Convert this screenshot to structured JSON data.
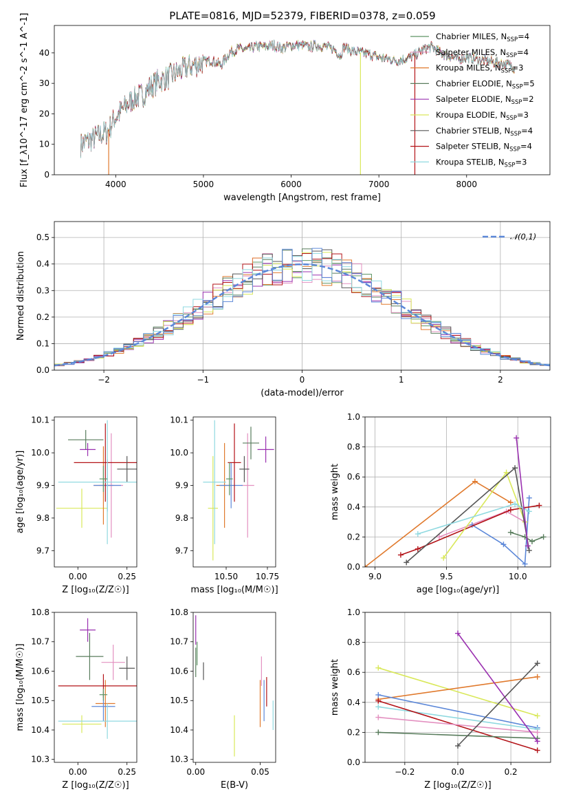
{
  "figure": {
    "title": "PLATE=0816, MJD=52379, FIBERID=0378, z=0.059"
  },
  "colors": {
    "chabrier_miles": "#5d9464",
    "salpeter_miles": "#e390c0",
    "kroupa_miles": "#e0792c",
    "chabrier_elodie": "#587c5c",
    "salpeter_elodie": "#9a30b0",
    "kroupa_elodie": "#d9e85a",
    "chabrier_stelib": "#555555",
    "salpeter_stelib": "#b31217",
    "kroupa_stelib": "#8fd9e0",
    "blue": "#5b87d8",
    "normal": "#5b87d8"
  },
  "chart_data": [
    {
      "id": "spectrum",
      "type": "line",
      "xlabel": "wavelength [Angstrom, rest frame]",
      "ylabel": "Flux [f_λ10^-17 erg cm^-2 s^-1 A^-1]",
      "xlim": [
        3300,
        8950
      ],
      "ylim": [
        0,
        49
      ],
      "xticks": [
        4000,
        5000,
        6000,
        7000,
        8000
      ],
      "yticks": [
        0,
        10,
        20,
        30,
        40
      ],
      "legend_loc": "upper right",
      "legend": [
        {
          "label": "Chabrier MILES, N",
          "sub": "SSP",
          "suffix": "=4",
          "color_key": "chabrier_miles"
        },
        {
          "label": "Salpeter MILES, N",
          "sub": "SSP",
          "suffix": "=4",
          "color_key": "salpeter_miles"
        },
        {
          "label": "Kroupa MILES, N",
          "sub": "SSP",
          "suffix": "=3",
          "color_key": "kroupa_miles"
        },
        {
          "label": "Chabrier ELODIE, N",
          "sub": "SSP",
          "suffix": "=5",
          "color_key": "chabrier_elodie"
        },
        {
          "label": "Salpeter ELODIE, N",
          "sub": "SSP",
          "suffix": "=2",
          "color_key": "salpeter_elodie"
        },
        {
          "label": "Kroupa ELODIE, N",
          "sub": "SSP",
          "suffix": "=3",
          "color_key": "kroupa_elodie"
        },
        {
          "label": "Chabrier STELIB, N",
          "sub": "SSP",
          "suffix": "=4",
          "color_key": "chabrier_stelib"
        },
        {
          "label": "Salpeter STELIB, N",
          "sub": "SSP",
          "suffix": "=4",
          "color_key": "salpeter_stelib"
        },
        {
          "label": "Kroupa STELIB, N",
          "sub": "SSP",
          "suffix": "=3",
          "color_key": "kroupa_stelib"
        }
      ],
      "continuum": [
        [
          3600,
          10
        ],
        [
          3750,
          12
        ],
        [
          3900,
          14
        ],
        [
          4000,
          19
        ],
        [
          4100,
          22
        ],
        [
          4200,
          25
        ],
        [
          4300,
          26
        ],
        [
          4400,
          29
        ],
        [
          4500,
          31
        ],
        [
          4600,
          32
        ],
        [
          4700,
          33.5
        ],
        [
          4800,
          35
        ],
        [
          4900,
          36
        ],
        [
          5000,
          37
        ],
        [
          5100,
          37.5
        ],
        [
          5200,
          36
        ],
        [
          5300,
          40
        ],
        [
          5400,
          41.5
        ],
        [
          5500,
          41
        ],
        [
          5600,
          42
        ],
        [
          5700,
          42
        ],
        [
          5800,
          42.5
        ],
        [
          5900,
          41.5
        ],
        [
          6000,
          42.5
        ],
        [
          6100,
          42.5
        ],
        [
          6200,
          42
        ],
        [
          6300,
          42.5
        ],
        [
          6400,
          42
        ],
        [
          6500,
          41
        ],
        [
          6560,
          39
        ],
        [
          6600,
          42
        ],
        [
          6700,
          40.5
        ],
        [
          6800,
          40
        ],
        [
          6900,
          39.5
        ],
        [
          7000,
          38.5
        ],
        [
          7100,
          38
        ],
        [
          7200,
          37.5
        ],
        [
          7300,
          38
        ],
        [
          7400,
          39
        ],
        [
          7500,
          41
        ],
        [
          7600,
          42
        ],
        [
          7700,
          40
        ],
        [
          7800,
          39
        ],
        [
          7900,
          38
        ],
        [
          8000,
          38.5
        ],
        [
          8100,
          38
        ],
        [
          8200,
          37.5
        ],
        [
          8300,
          37
        ],
        [
          8400,
          36.5
        ],
        [
          8500,
          36
        ],
        [
          8550,
          35
        ]
      ],
      "spikes": [
        {
          "x": 3920,
          "y": 0,
          "color_key": "kroupa_miles"
        },
        {
          "x": 6790,
          "y": 0,
          "color_key": "kroupa_elodie"
        },
        {
          "x": 7410,
          "y": 0,
          "color_key": "salpeter_stelib"
        }
      ]
    },
    {
      "id": "residuals",
      "type": "bar",
      "xlabel": "(data-model)/error",
      "ylabel": "Normed distribution",
      "xlim": [
        -2.5,
        2.5
      ],
      "ylim": [
        0,
        0.56
      ],
      "xticks": [
        -2,
        -1,
        0,
        1,
        2
      ],
      "yticks": [
        0.0,
        0.1,
        0.2,
        0.3,
        0.4,
        0.5
      ],
      "legend_loc": "upper right",
      "legend_label": "𝒩(0,1)",
      "bin_width": 0.1,
      "normal": {
        "mean": 0,
        "sigma": 1
      }
    },
    {
      "id": "age_vs_Z",
      "type": "scatter",
      "xlabel": "Z [log₁₀(Z/Z☉)]",
      "ylabel": "age  [log₁₀(age/yr)]",
      "xlim": [
        -0.12,
        0.3
      ],
      "ylim": [
        9.65,
        10.11
      ],
      "xticks": [
        0.0,
        0.25
      ],
      "yticks": [
        9.7,
        9.8,
        9.9,
        10.0,
        10.1
      ],
      "xtick_labels": [
        "0.00",
        "0.25"
      ],
      "points": [
        {
          "x": 0.02,
          "y": 9.83,
          "xerr": 0.13,
          "yerr": 0.06,
          "color_key": "kroupa_elodie"
        },
        {
          "x": 0.13,
          "y": 9.9,
          "xerr": 0.05,
          "yerr": 0.12,
          "color_key": "kroupa_miles"
        },
        {
          "x": 0.17,
          "y": 9.9,
          "xerr": 0.06,
          "yerr": 0.16,
          "color_key": "salpeter_miles"
        },
        {
          "x": 0.15,
          "y": 9.9,
          "xerr": 0.07,
          "yerr": 0.08,
          "color_key": "blue"
        },
        {
          "x": 0.14,
          "y": 9.97,
          "xerr": 0.16,
          "yerr": 0.12,
          "color_key": "salpeter_stelib"
        },
        {
          "x": 0.04,
          "y": 10.04,
          "xerr": 0.09,
          "yerr": 0.03,
          "color_key": "chabrier_elodie"
        },
        {
          "x": 0.05,
          "y": 10.01,
          "xerr": 0.04,
          "yerr": 0.02,
          "color_key": "salpeter_elodie"
        },
        {
          "x": 0.25,
          "y": 9.95,
          "xerr": 0.05,
          "yerr": 0.04,
          "color_key": "chabrier_stelib"
        },
        {
          "x": 0.15,
          "y": 9.91,
          "xerr": 0.25,
          "yerr": 0.19,
          "color_key": "kroupa_stelib"
        },
        {
          "x": 0.13,
          "y": 9.92,
          "xerr": 0.02,
          "yerr": 0.04,
          "color_key": "chabrier_miles"
        }
      ]
    },
    {
      "id": "age_vs_mass",
      "type": "scatter",
      "xlabel": "mass [log₁₀(M/M☉)]",
      "ylabel": "",
      "xlim": [
        10.3,
        10.8
      ],
      "ylim": [
        9.65,
        10.11
      ],
      "xticks": [
        10.5,
        10.75
      ],
      "yticks": [
        9.7,
        9.8,
        9.9,
        10.0,
        10.1
      ],
      "xtick_labels": [
        "10.50",
        "10.75"
      ],
      "points": [
        {
          "x": 10.42,
          "y": 9.83,
          "xerr": 0.03,
          "yerr": 0.16,
          "color_key": "kroupa_elodie"
        },
        {
          "x": 10.49,
          "y": 9.9,
          "xerr": 0.05,
          "yerr": 0.13,
          "color_key": "kroupa_miles"
        },
        {
          "x": 10.63,
          "y": 9.9,
          "xerr": 0.04,
          "yerr": 0.16,
          "color_key": "salpeter_miles"
        },
        {
          "x": 10.53,
          "y": 9.9,
          "xerr": 0.07,
          "yerr": 0.07,
          "color_key": "blue"
        },
        {
          "x": 10.55,
          "y": 9.97,
          "xerr": 0.04,
          "yerr": 0.12,
          "color_key": "salpeter_stelib"
        },
        {
          "x": 10.65,
          "y": 10.03,
          "xerr": 0.05,
          "yerr": 0.05,
          "color_key": "chabrier_elodie"
        },
        {
          "x": 10.74,
          "y": 10.01,
          "xerr": 0.05,
          "yerr": 0.04,
          "color_key": "salpeter_elodie"
        },
        {
          "x": 10.61,
          "y": 9.95,
          "xerr": 0.03,
          "yerr": 0.04,
          "color_key": "chabrier_stelib"
        },
        {
          "x": 10.43,
          "y": 9.91,
          "xerr": 0.07,
          "yerr": 0.19,
          "color_key": "kroupa_stelib"
        },
        {
          "x": 10.52,
          "y": 9.92,
          "xerr": 0.02,
          "yerr": 0.05,
          "color_key": "chabrier_miles"
        }
      ]
    },
    {
      "id": "weight_vs_age",
      "type": "line",
      "xlabel": "age  [log₁₀(age/yr)]",
      "ylabel": "mass weight",
      "xlim": [
        8.93,
        10.23
      ],
      "ylim": [
        0,
        1
      ],
      "xticks": [
        9.0,
        9.5,
        10.0
      ],
      "yticks": [
        0.0,
        0.2,
        0.4,
        0.6,
        0.8,
        1.0
      ],
      "series": [
        {
          "color_key": "kroupa_miles",
          "x": [
            8.93,
            9.7,
            9.95
          ],
          "y": [
            0.0,
            0.57,
            0.43
          ]
        },
        {
          "color_key": "salpeter_miles",
          "x": [
            9.45,
            9.92,
            10.05
          ],
          "y": [
            0.2,
            0.37,
            0.3
          ]
        },
        {
          "color_key": "blue",
          "x": [
            9.68,
            9.9,
            10.05,
            10.08
          ],
          "y": [
            0.28,
            0.15,
            0.02,
            0.46
          ]
        },
        {
          "color_key": "salpeter_stelib",
          "x": [
            9.18,
            9.3,
            9.95,
            10.15
          ],
          "y": [
            0.08,
            0.12,
            0.38,
            0.41
          ]
        },
        {
          "color_key": "kroupa_elodie",
          "x": [
            9.48,
            9.92,
            10.05
          ],
          "y": [
            0.06,
            0.63,
            0.3
          ]
        },
        {
          "color_key": "chabrier_elodie",
          "x": [
            9.95,
            10.05,
            10.1,
            10.18
          ],
          "y": [
            0.23,
            0.2,
            0.17,
            0.2
          ]
        },
        {
          "color_key": "chabrier_stelib",
          "x": [
            9.22,
            9.98,
            10.08
          ],
          "y": [
            0.03,
            0.66,
            0.11
          ]
        },
        {
          "color_key": "kroupa_stelib",
          "x": [
            9.3,
            9.98,
            10.08
          ],
          "y": [
            0.22,
            0.42,
            0.37
          ]
        },
        {
          "color_key": "salpeter_elodie",
          "x": [
            9.99,
            10.07
          ],
          "y": [
            0.86,
            0.14
          ]
        }
      ]
    },
    {
      "id": "mass_vs_Z",
      "type": "scatter",
      "xlabel": "Z [log₁₀(Z/Z☉)]",
      "ylabel": "mass [log₁₀(M/M☉)]",
      "xlim": [
        -0.12,
        0.3
      ],
      "ylim": [
        10.29,
        10.8
      ],
      "xticks": [
        0.0,
        0.25
      ],
      "yticks": [
        10.3,
        10.4,
        10.5,
        10.6,
        10.7,
        10.8
      ],
      "xtick_labels": [
        "0.00",
        "0.25"
      ],
      "points": [
        {
          "x": 0.02,
          "y": 10.42,
          "xerr": 0.1,
          "yerr": 0.03,
          "color_key": "kroupa_elodie"
        },
        {
          "x": 0.14,
          "y": 10.49,
          "xerr": 0.05,
          "yerr": 0.08,
          "color_key": "kroupa_miles"
        },
        {
          "x": 0.18,
          "y": 10.63,
          "xerr": 0.06,
          "yerr": 0.06,
          "color_key": "salpeter_miles"
        },
        {
          "x": 0.13,
          "y": 10.48,
          "xerr": 0.06,
          "yerr": 0.05,
          "color_key": "blue"
        },
        {
          "x": 0.13,
          "y": 10.55,
          "xerr": 0.23,
          "yerr": 0.04,
          "color_key": "salpeter_stelib"
        },
        {
          "x": 0.06,
          "y": 10.65,
          "xerr": 0.07,
          "yerr": 0.08,
          "color_key": "chabrier_elodie"
        },
        {
          "x": 0.05,
          "y": 10.74,
          "xerr": 0.04,
          "yerr": 0.04,
          "color_key": "salpeter_elodie"
        },
        {
          "x": 0.25,
          "y": 10.61,
          "xerr": 0.04,
          "yerr": 0.04,
          "color_key": "chabrier_stelib"
        },
        {
          "x": 0.15,
          "y": 10.43,
          "xerr": 0.25,
          "yerr": 0.06,
          "color_key": "kroupa_stelib"
        },
        {
          "x": 0.13,
          "y": 10.52,
          "xerr": 0.02,
          "yerr": 0.02,
          "color_key": "chabrier_miles"
        }
      ]
    },
    {
      "id": "mass_vs_EBV",
      "type": "scatter",
      "xlabel": "E(B-V)",
      "ylabel": "",
      "xlim": [
        -0.002,
        0.062
      ],
      "ylim": [
        10.29,
        10.8
      ],
      "xticks": [
        0.0,
        0.05
      ],
      "yticks": [
        10.3,
        10.4,
        10.5,
        10.6,
        10.7,
        10.8
      ],
      "xtick_labels": [
        "0.00",
        "0.05"
      ],
      "points": [
        {
          "x": 0.03,
          "y": 10.38,
          "xerr": 0,
          "yerr": 0.07,
          "color_key": "kroupa_elodie"
        },
        {
          "x": 0.05,
          "y": 10.49,
          "xerr": 0,
          "yerr": 0.08,
          "color_key": "kroupa_miles"
        },
        {
          "x": 0.051,
          "y": 10.6,
          "xerr": 0,
          "yerr": 0.05,
          "color_key": "salpeter_miles"
        },
        {
          "x": 0.053,
          "y": 10.5,
          "xerr": 0,
          "yerr": 0.07,
          "color_key": "blue"
        },
        {
          "x": 0.055,
          "y": 10.53,
          "xerr": 0,
          "yerr": 0.05,
          "color_key": "salpeter_stelib"
        },
        {
          "x": 0.0,
          "y": 10.63,
          "xerr": 0,
          "yerr": 0.05,
          "color_key": "chabrier_elodie"
        },
        {
          "x": 0.0,
          "y": 10.74,
          "xerr": 0,
          "yerr": 0.05,
          "color_key": "salpeter_elodie"
        },
        {
          "x": 0.006,
          "y": 10.6,
          "xerr": 0,
          "yerr": 0.03,
          "color_key": "chabrier_stelib"
        },
        {
          "x": 0.06,
          "y": 10.45,
          "xerr": 0,
          "yerr": 0.05,
          "color_key": "kroupa_stelib"
        },
        {
          "x": 0.001,
          "y": 10.66,
          "xerr": 0,
          "yerr": 0.04,
          "color_key": "chabrier_miles"
        }
      ]
    },
    {
      "id": "weight_vs_Z",
      "type": "line",
      "xlabel": "Z [log₁₀(Z/Z☉)]",
      "ylabel": "mass weight",
      "xlim": [
        -0.35,
        0.35
      ],
      "ylim": [
        0,
        1
      ],
      "xticks": [
        -0.2,
        0.0,
        0.2
      ],
      "yticks": [
        0.0,
        0.2,
        0.4,
        0.6,
        0.8,
        1.0
      ],
      "xtick_labels": [
        "−0.2",
        "0.0",
        "0.2"
      ],
      "series": [
        {
          "color_key": "kroupa_elodie",
          "x": [
            -0.3,
            0.3
          ],
          "y": [
            0.63,
            0.31
          ]
        },
        {
          "color_key": "kroupa_miles",
          "x": [
            -0.3,
            0.3
          ],
          "y": [
            0.42,
            0.57
          ]
        },
        {
          "color_key": "blue",
          "x": [
            -0.3,
            0.3
          ],
          "y": [
            0.45,
            0.23
          ]
        },
        {
          "color_key": "kroupa_stelib",
          "x": [
            -0.3,
            0.3
          ],
          "y": [
            0.37,
            0.22
          ]
        },
        {
          "color_key": "salpeter_stelib",
          "x": [
            -0.3,
            0.3
          ],
          "y": [
            0.41,
            0.08
          ]
        },
        {
          "color_key": "salpeter_miles",
          "x": [
            -0.3,
            0.3
          ],
          "y": [
            0.3,
            0.2
          ]
        },
        {
          "color_key": "chabrier_elodie",
          "x": [
            -0.3,
            0.3
          ],
          "y": [
            0.2,
            0.16
          ]
        },
        {
          "color_key": "salpeter_elodie",
          "x": [
            0.0,
            0.3
          ],
          "y": [
            0.86,
            0.14
          ]
        },
        {
          "color_key": "chabrier_stelib",
          "x": [
            0.0,
            0.3
          ],
          "y": [
            0.11,
            0.66
          ]
        }
      ]
    }
  ]
}
